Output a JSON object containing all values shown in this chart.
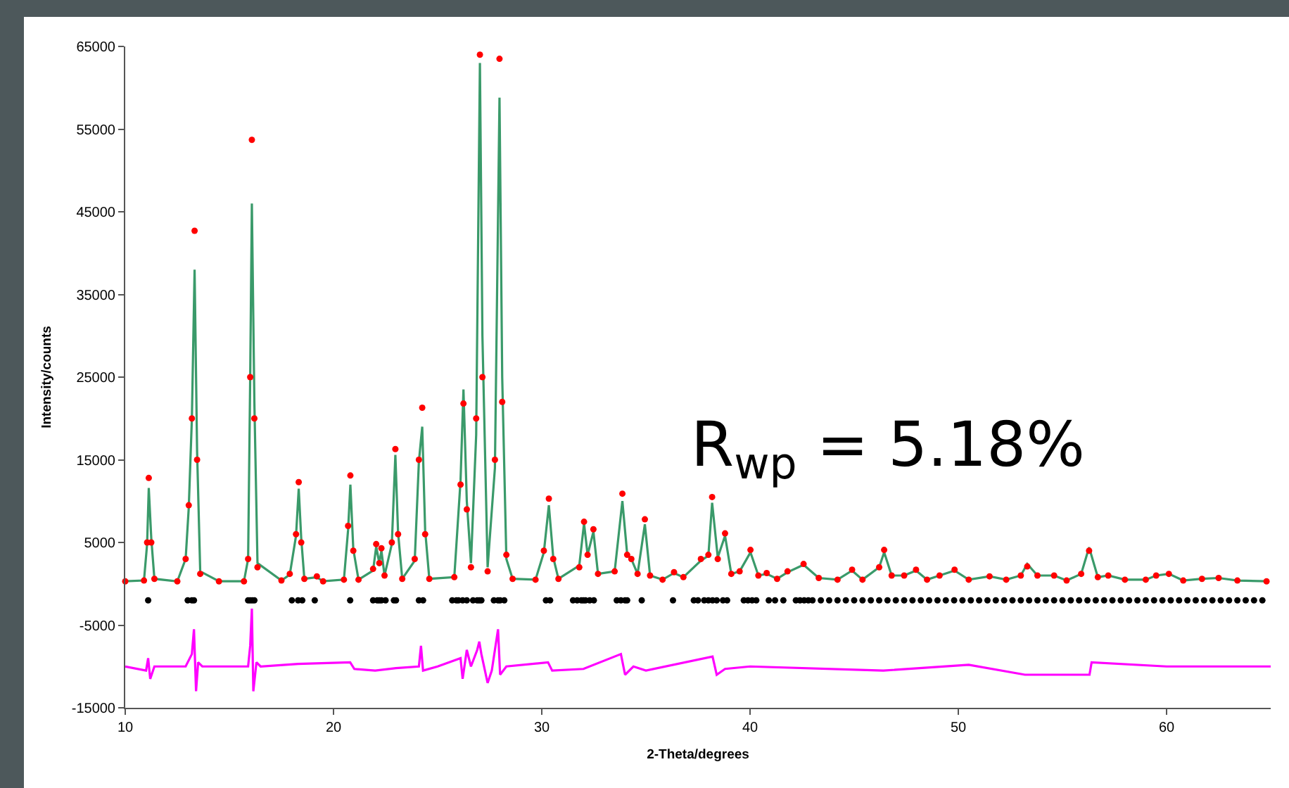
{
  "chart_data": {
    "type": "scatter",
    "xlabel": "2-Theta/degrees",
    "ylabel": "Intensity/counts",
    "xlim": [
      10,
      65
    ],
    "xticks": [
      10,
      20,
      30,
      40,
      50,
      60
    ],
    "ylim": [
      -15000,
      65000
    ],
    "yticks": [
      -15000,
      -5000,
      5000,
      15000,
      25000,
      35000,
      45000,
      55000,
      65000
    ],
    "grid": false,
    "annotations": [
      "R$_{wp}$ = 5.18%"
    ],
    "x": [
      10.0,
      10.9,
      11.05,
      11.13,
      11.25,
      11.4,
      12.5,
      12.9,
      13.05,
      13.2,
      13.33,
      13.45,
      13.6,
      14.5,
      15.7,
      15.9,
      16.0,
      16.08,
      16.2,
      16.35,
      17.5,
      17.9,
      18.2,
      18.33,
      18.45,
      18.6,
      19.2,
      19.5,
      20.5,
      20.7,
      20.81,
      20.95,
      21.2,
      21.9,
      22.05,
      22.2,
      22.3,
      22.45,
      22.8,
      22.97,
      23.1,
      23.3,
      23.9,
      24.1,
      24.26,
      24.4,
      24.6,
      25.8,
      26.1,
      26.24,
      26.4,
      26.6,
      26.85,
      27.03,
      27.15,
      27.4,
      27.75,
      27.97,
      28.1,
      28.3,
      28.6,
      29.7,
      30.1,
      30.34,
      30.55,
      30.8,
      31.8,
      32.03,
      32.2,
      32.48,
      32.7,
      33.5,
      33.87,
      34.1,
      34.3,
      34.6,
      34.95,
      35.2,
      35.8,
      36.35,
      36.8,
      37.64,
      38.0,
      38.18,
      38.45,
      38.8,
      39.1,
      39.5,
      40.02,
      40.4,
      40.8,
      41.3,
      41.8,
      42.57,
      43.3,
      44.2,
      44.9,
      45.4,
      46.2,
      46.44,
      46.8,
      47.4,
      47.97,
      48.5,
      49.1,
      49.82,
      50.5,
      51.5,
      52.3,
      53.0,
      53.31,
      53.8,
      54.6,
      55.2,
      55.9,
      56.28,
      56.7,
      57.2,
      58.0,
      59.0,
      59.5,
      60.11,
      60.8,
      61.7,
      62.5,
      63.4,
      64.8
    ],
    "series": [
      {
        "type": "line",
        "color": "#3a9a6a",
        "marker": "none",
        "values": [
          300,
          400,
          4800,
          11600,
          5500,
          600,
          300,
          3000,
          9200,
          20000,
          38000,
          16000,
          1500,
          300,
          300,
          3000,
          25000,
          46000,
          22000,
          2500,
          400,
          1100,
          5800,
          11500,
          5500,
          600,
          800,
          300,
          500,
          6500,
          12000,
          4200,
          500,
          1600,
          4500,
          2500,
          4000,
          1000,
          4800,
          15600,
          6200,
          600,
          2800,
          14800,
          19000,
          6500,
          600,
          800,
          12500,
          23500,
          10000,
          2500,
          18000,
          63000,
          30000,
          2000,
          14000,
          58800,
          25000,
          3000,
          600,
          500,
          3800,
          9500,
          3200,
          600,
          2200,
          7300,
          3500,
          6300,
          1200,
          1500,
          10000,
          3600,
          3000,
          1200,
          7200,
          1000,
          500,
          1300,
          800,
          2800,
          3400,
          9800,
          3200,
          5800,
          1200,
          1500,
          3800,
          1000,
          1200,
          600,
          1400,
          2300,
          700,
          500,
          1600,
          500,
          2000,
          3800,
          1000,
          1000,
          1600,
          500,
          1000,
          1600,
          500,
          900,
          500,
          1000,
          2400,
          1000,
          1000,
          400,
          1200,
          4400,
          800,
          1000,
          500,
          500,
          1000,
          1200,
          400,
          600,
          700,
          400,
          300
        ]
      },
      {
        "type": "scatter",
        "color": "#ff0000",
        "marker": "circle",
        "values": [
          300,
          400,
          5000,
          12800,
          5000,
          600,
          300,
          3000,
          9500,
          20000,
          42700,
          15000,
          1200,
          300,
          300,
          3000,
          25000,
          53700,
          20000,
          2000,
          400,
          1200,
          6000,
          12300,
          5000,
          600,
          900,
          300,
          500,
          7000,
          13100,
          4000,
          500,
          1800,
          4800,
          2500,
          4300,
          1000,
          5000,
          16300,
          6000,
          600,
          3000,
          15000,
          21300,
          6000,
          600,
          800,
          12000,
          21800,
          9000,
          2000,
          20000,
          64000,
          25000,
          1500,
          15000,
          63500,
          22000,
          3500,
          600,
          500,
          4000,
          10300,
          3000,
          600,
          2000,
          7500,
          3500,
          6600,
          1200,
          1500,
          10900,
          3500,
          3000,
          1200,
          7800,
          1000,
          500,
          1400,
          800,
          3000,
          3500,
          10500,
          3000,
          6100,
          1200,
          1500,
          4100,
          1000,
          1300,
          600,
          1500,
          2400,
          700,
          500,
          1700,
          500,
          2000,
          4100,
          1000,
          1000,
          1700,
          500,
          1000,
          1700,
          500,
          900,
          500,
          1000,
          2100,
          1000,
          1000,
          400,
          1200,
          4000,
          800,
          1000,
          500,
          500,
          1000,
          1200,
          400,
          600,
          700,
          400,
          300
        ]
      },
      {
        "type": "line",
        "color": "#ff00ff",
        "marker": "none",
        "x": [
          10,
          11.0,
          11.1,
          11.2,
          11.4,
          12.9,
          13.2,
          13.3,
          13.4,
          13.5,
          13.7,
          15.9,
          16.0,
          16.08,
          16.15,
          16.3,
          16.5,
          18.3,
          20.8,
          21.0,
          22.0,
          23.0,
          24.1,
          24.2,
          24.3,
          25.0,
          26.1,
          26.2,
          26.4,
          26.6,
          26.9,
          27.0,
          27.1,
          27.4,
          27.6,
          27.9,
          28.0,
          28.3,
          30.3,
          30.5,
          32.0,
          33.8,
          34.0,
          34.4,
          35.0,
          38.2,
          38.4,
          38.8,
          40,
          46.4,
          50.5,
          53.2,
          56.3,
          56.4,
          60,
          65
        ],
        "values": [
          -10000,
          -10500,
          -9000,
          -11500,
          -10000,
          -10000,
          -8500,
          -5500,
          -13000,
          -9500,
          -10000,
          -10000,
          -7500,
          -3000,
          -13000,
          -9500,
          -10000,
          -9700,
          -9500,
          -10300,
          -10500,
          -10200,
          -10000,
          -7500,
          -10500,
          -10000,
          -9000,
          -11500,
          -8000,
          -10000,
          -8000,
          -7000,
          -8500,
          -12000,
          -10500,
          -5500,
          -11000,
          -10000,
          -9500,
          -10500,
          -10300,
          -8500,
          -11000,
          -10000,
          -10500,
          -8800,
          -11000,
          -10300,
          -10000,
          -10500,
          -9800,
          -11000,
          -11000,
          -9500,
          -10000,
          -10000
        ]
      },
      {
        "type": "scatter",
        "color": "#000000",
        "marker": "circle",
        "x": [
          11.1,
          13.0,
          13.2,
          13.3,
          15.9,
          16.0,
          16.1,
          16.2,
          18.0,
          18.3,
          18.5,
          19.1,
          20.8,
          21.9,
          22.1,
          22.2,
          22.3,
          22.5,
          22.9,
          23.0,
          24.1,
          24.3,
          25.7,
          25.9,
          26.0,
          26.2,
          26.4,
          26.7,
          26.9,
          27.0,
          27.1,
          27.7,
          27.9,
          28.0,
          28.2,
          30.2,
          30.4,
          31.5,
          31.7,
          31.9,
          32.0,
          32.1,
          32.3,
          32.5,
          33.6,
          33.8,
          34.0,
          34.1,
          34.8,
          36.3,
          37.3,
          37.5,
          37.8,
          38.0,
          38.2,
          38.4,
          38.7,
          38.9,
          39.7,
          39.9,
          40.1,
          40.3,
          40.9,
          41.2,
          41.6,
          42.2,
          42.4,
          42.6,
          42.8,
          43.0,
          43.4,
          43.8,
          44.2,
          44.6,
          45.0,
          45.4,
          45.8,
          46.2,
          46.6,
          47.0,
          47.4,
          47.8,
          48.2,
          48.6,
          49.0,
          49.4,
          49.8,
          50.2,
          50.6,
          51.0,
          51.4,
          51.8,
          52.2,
          52.6,
          53.0,
          53.4,
          53.8,
          54.2,
          54.6,
          55.0,
          55.4,
          55.8,
          56.2,
          56.6,
          57.0,
          57.4,
          57.8,
          58.2,
          58.6,
          59.0,
          59.4,
          59.8,
          60.2,
          60.6,
          61.0,
          61.4,
          61.8,
          62.2,
          62.6,
          63.0,
          63.4,
          63.8,
          64.2,
          64.6
        ],
        "values": [
          -2000,
          -2000,
          -2000,
          -2000,
          -2000,
          -2000,
          -2000,
          -2000,
          -2000,
          -2000,
          -2000,
          -2000,
          -2000,
          -2000,
          -2000,
          -2000,
          -2000,
          -2000,
          -2000,
          -2000,
          -2000,
          -2000,
          -2000,
          -2000,
          -2000,
          -2000,
          -2000,
          -2000,
          -2000,
          -2000,
          -2000,
          -2000,
          -2000,
          -2000,
          -2000,
          -2000,
          -2000,
          -2000,
          -2000,
          -2000,
          -2000,
          -2000,
          -2000,
          -2000,
          -2000,
          -2000,
          -2000,
          -2000,
          -2000,
          -2000,
          -2000,
          -2000,
          -2000,
          -2000,
          -2000,
          -2000,
          -2000,
          -2000,
          -2000,
          -2000,
          -2000,
          -2000,
          -2000,
          -2000,
          -2000,
          -2000,
          -2000,
          -2000,
          -2000,
          -2000,
          -2000,
          -2000,
          -2000,
          -2000,
          -2000,
          -2000,
          -2000,
          -2000,
          -2000,
          -2000,
          -2000,
          -2000,
          -2000,
          -2000,
          -2000,
          -2000,
          -2000,
          -2000,
          -2000,
          -2000,
          -2000,
          -2000,
          -2000,
          -2000,
          -2000,
          -2000,
          -2000,
          -2000,
          -2000,
          -2000,
          -2000,
          -2000,
          -2000,
          -2000,
          -2000,
          -2000,
          -2000,
          -2000,
          -2000,
          -2000,
          -2000,
          -2000,
          -2000,
          -2000,
          -2000,
          -2000,
          -2000,
          -2000,
          -2000,
          -2000,
          -2000,
          -2000,
          -2000,
          -2000
        ]
      }
    ]
  }
}
